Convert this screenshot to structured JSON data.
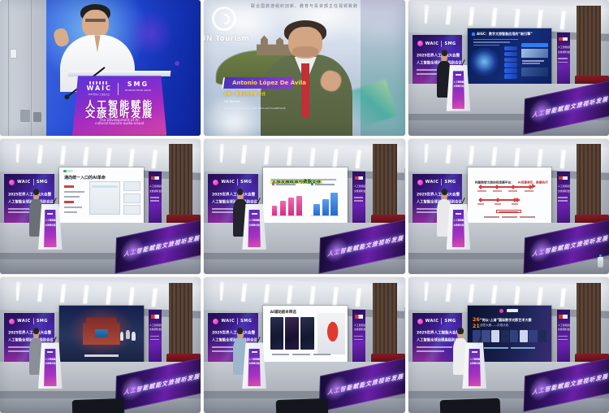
{
  "page": {
    "background": "#ffffff"
  },
  "shared": {
    "waic": "WAIC",
    "smg": "SMG",
    "wall1": "2025世界人工智能大会暨",
    "wall2": "人工智能全球治理高级别会议",
    "side1": "人工智能赋能",
    "side2": "文旅视听发展",
    "banner": "人工智能赋能文旅视听发展"
  },
  "cells": [
    {
      "id": "keynote-speaker-closeup",
      "podium": {
        "waic": "WAIC",
        "waic_sub": "2025世界人工智能大会",
        "smg": "SMG",
        "smg_sub": "SHANGHAI MEDIA GROUP",
        "title1": "人工智能赋能",
        "title2": "文旅视听发展",
        "en1": "The Development of AI:",
        "en2": "cultural tourism-audio-visual"
      }
    },
    {
      "id": "un-tourism-video-speaker",
      "caption": "联合国旅游组织创新、教育与投资部主任视频致辞",
      "logo": "UN Tourism",
      "name": "Antonio López De Ávila",
      "title_cn": "创新、教育与投资部 主任",
      "org": "UN Tourism",
      "title_en": "Director of Innovation, Education and Investments"
    },
    {
      "id": "stage-aigc-slide",
      "slide": {
        "title": "AIGC：数字文旅智能应用的“新引擎”"
      }
    },
    {
      "id": "stage-ai-entry-slide",
      "slide": {
        "title": "通向统一入口的AI革命"
      }
    },
    {
      "id": "stage-policy-data-slide",
      "slide": {
        "title": "文旅发展政策与数据支撑"
      },
      "chart": {
        "type": "bar",
        "left": {
          "color": "#e0429a",
          "values": [
            38,
            56,
            68,
            74
          ]
        },
        "right": {
          "color": "#2f80e8",
          "values": [
            42,
            62,
            88
          ]
        }
      }
    },
    {
      "id": "stage-red-roadmap-slide",
      "slide": {
        "title_main": "构建数智文旅协同发展平台：",
        "title_accent": "AI场景牵引、数据先行"
      }
    },
    {
      "id": "stage-scene-video"
    },
    {
      "id": "stage-script-slide",
      "slide": {
        "title": "AI辅助剧本筛选"
      }
    },
    {
      "id": "stage-shanghai-contest-slide",
      "slide": {
        "num1": "26",
        "num2": "21",
        "title": "“何以·上海”国际数字光影艺术大赛",
        "sub": "创意大赛——灯塔计划"
      }
    }
  ]
}
